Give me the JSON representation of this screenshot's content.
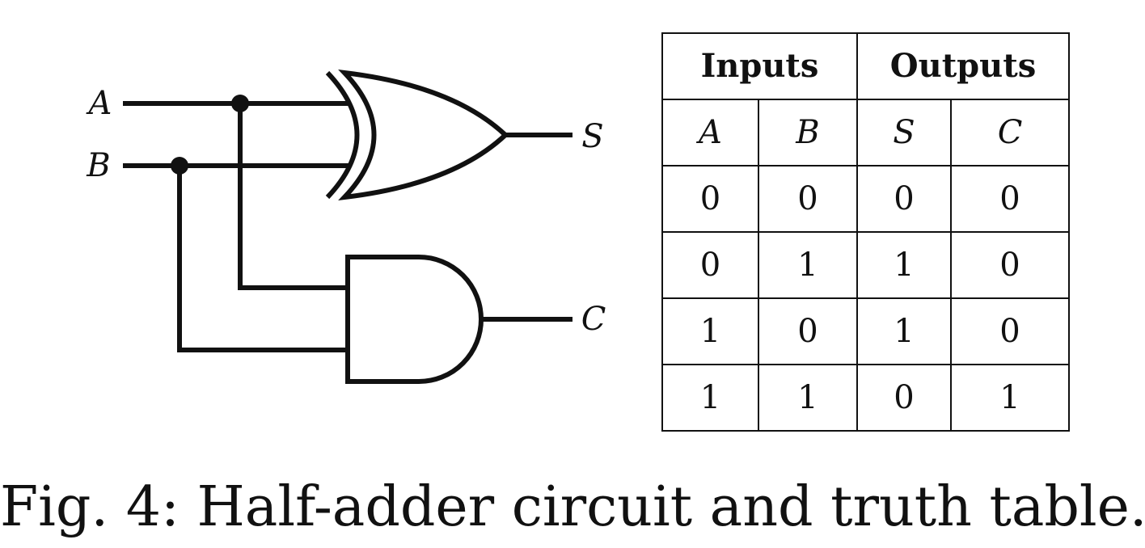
{
  "circuit": {
    "inputs": [
      "A",
      "B"
    ],
    "outputs": [
      "S",
      "C"
    ],
    "gates": [
      {
        "type": "XOR",
        "inputs": [
          "A",
          "B"
        ],
        "output": "S"
      },
      {
        "type": "AND",
        "inputs": [
          "A",
          "B"
        ],
        "output": "C"
      }
    ]
  },
  "table": {
    "groups": [
      "Inputs",
      "Outputs"
    ],
    "columns": [
      "A",
      "B",
      "S",
      "C"
    ],
    "rows": [
      [
        "0",
        "0",
        "0",
        "0"
      ],
      [
        "0",
        "1",
        "1",
        "0"
      ],
      [
        "1",
        "0",
        "1",
        "0"
      ],
      [
        "1",
        "1",
        "0",
        "1"
      ]
    ]
  },
  "caption": "Fig. 4: Half-adder circuit and truth table."
}
